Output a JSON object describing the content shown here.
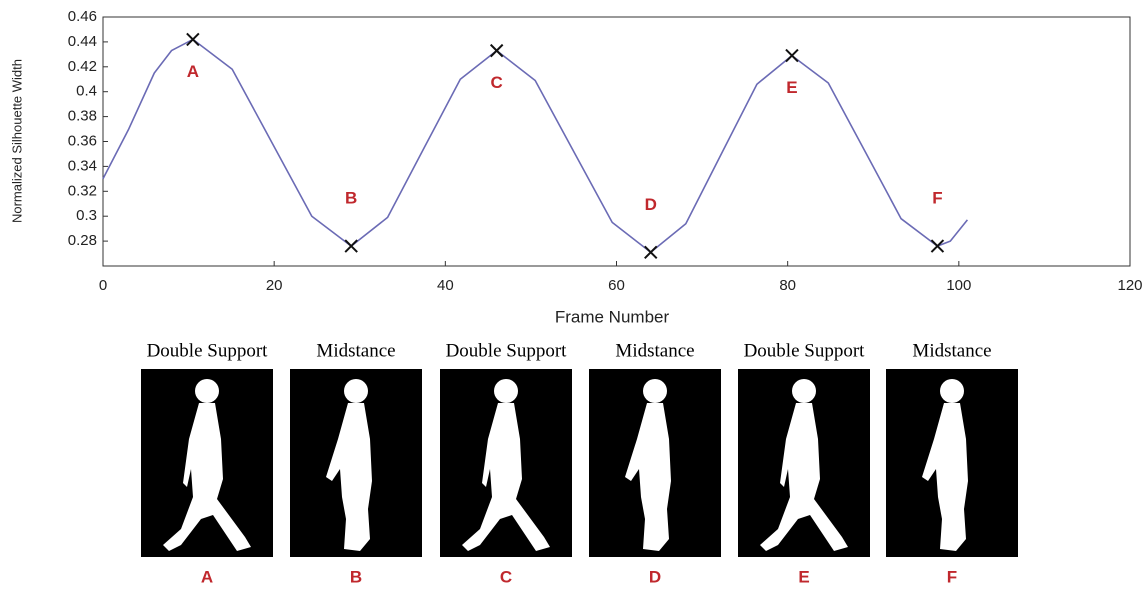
{
  "chart_data": {
    "type": "line",
    "ylabel": "Normalized Silhouette Width",
    "xlabel": "Frame Number",
    "x": [
      0,
      3,
      6,
      8,
      10.5,
      15.1,
      19.75,
      24.4,
      29,
      33.25,
      37.5,
      41.75,
      46,
      50.5,
      55,
      59.5,
      64,
      68.1,
      72.25,
      76.4,
      80.5,
      84.75,
      89,
      93.25,
      97.5,
      99,
      101
    ],
    "values": [
      0.33,
      0.37,
      0.415,
      0.433,
      0.442,
      0.418,
      0.359,
      0.3,
      0.276,
      0.299,
      0.3545,
      0.41,
      0.433,
      0.409,
      0.352,
      0.295,
      0.271,
      0.294,
      0.35,
      0.406,
      0.429,
      0.407,
      0.3525,
      0.298,
      0.276,
      0.28,
      0.297
    ],
    "color": "#6b6bb5",
    "xlim": [
      0,
      120
    ],
    "xticks": [
      0,
      20,
      40,
      60,
      80,
      100,
      120
    ],
    "ylim": [
      0.26,
      0.46
    ],
    "yticks": [
      0.28,
      0.3,
      0.32,
      0.34,
      0.36,
      0.38,
      0.4,
      0.42,
      0.44,
      0.46
    ],
    "points": {
      "labels": [
        "A",
        "B",
        "C",
        "D",
        "E",
        "F"
      ],
      "x": [
        10.5,
        29,
        46,
        64,
        80.5,
        97.5
      ],
      "y": [
        0.442,
        0.276,
        0.433,
        0.271,
        0.429,
        0.276
      ],
      "color": "#111111",
      "label_color": "#c0282d"
    }
  },
  "figure": {
    "panels": [
      {
        "caption": "Double Support",
        "label": "A"
      },
      {
        "caption": "Midstance",
        "label": "B"
      },
      {
        "caption": "Double Support",
        "label": "C"
      },
      {
        "caption": "Midstance",
        "label": "D"
      },
      {
        "caption": "Double Support",
        "label": "E"
      },
      {
        "caption": "Midstance",
        "label": "F"
      }
    ]
  }
}
